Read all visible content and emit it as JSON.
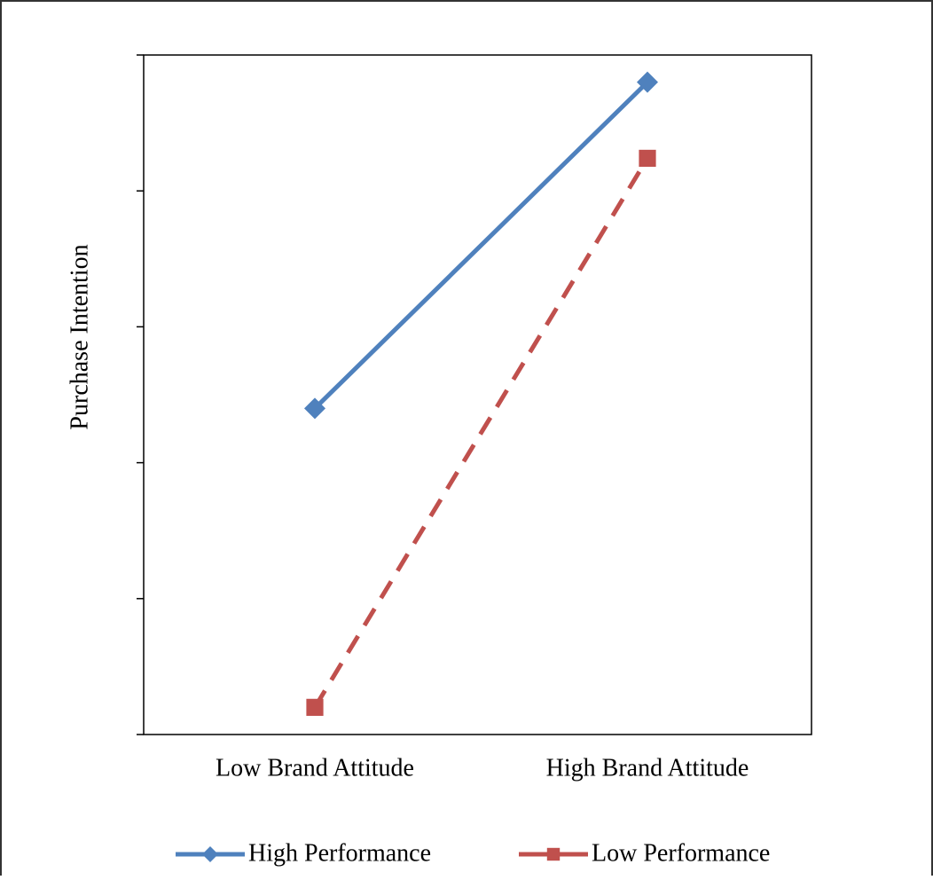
{
  "chart_data": {
    "type": "line",
    "y_label": "Purchase Intention",
    "categories": [
      "Low Brand Attitude",
      "High Brand Attitude"
    ],
    "series": [
      {
        "name": "High Performance",
        "color": "#4f81bd",
        "marker": "diamond",
        "dashed": false,
        "values": [
          2.4,
          4.8
        ]
      },
      {
        "name": "Low Performance",
        "color": "#c0504d",
        "marker": "square",
        "dashed": true,
        "values": [
          0.2,
          4.24
        ]
      }
    ],
    "ylim": [
      0,
      5
    ],
    "yticks": [
      0,
      1,
      2,
      3,
      4,
      5
    ],
    "grid": false,
    "legend": "bottom"
  }
}
